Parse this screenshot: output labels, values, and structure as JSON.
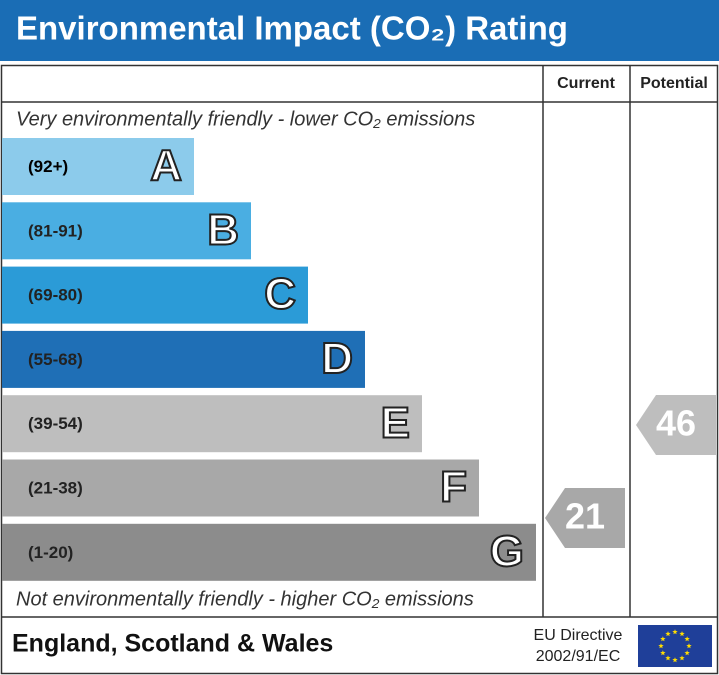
{
  "header": {
    "title": "Environmental Impact (CO₂) Rating"
  },
  "columns": {
    "current": "Current",
    "potential": "Potential"
  },
  "top_note": "Very environmentally friendly - lower CO₂ emissions",
  "bottom_note": "Not environmentally friendly - higher CO₂ emissions",
  "bands": [
    {
      "range": "(92+)",
      "letter": "A",
      "color": "#8ccbeb"
    },
    {
      "range": "(81-91)",
      "letter": "B",
      "color": "#4aaee2"
    },
    {
      "range": "(69-80)",
      "letter": "C",
      "color": "#2b9bd7"
    },
    {
      "range": "(55-68)",
      "letter": "D",
      "color": "#1f6fb6"
    },
    {
      "range": "(39-54)",
      "letter": "E",
      "color": "#bebebe"
    },
    {
      "range": "(21-38)",
      "letter": "F",
      "color": "#a8a8a8"
    },
    {
      "range": "(1-20)",
      "letter": "G",
      "color": "#8c8c8c"
    }
  ],
  "current_rating": 21,
  "potential_rating": 46,
  "footer": {
    "region": "England, Scotland & Wales",
    "directive": [
      "EU Directive",
      "2002/91/EC"
    ]
  }
}
